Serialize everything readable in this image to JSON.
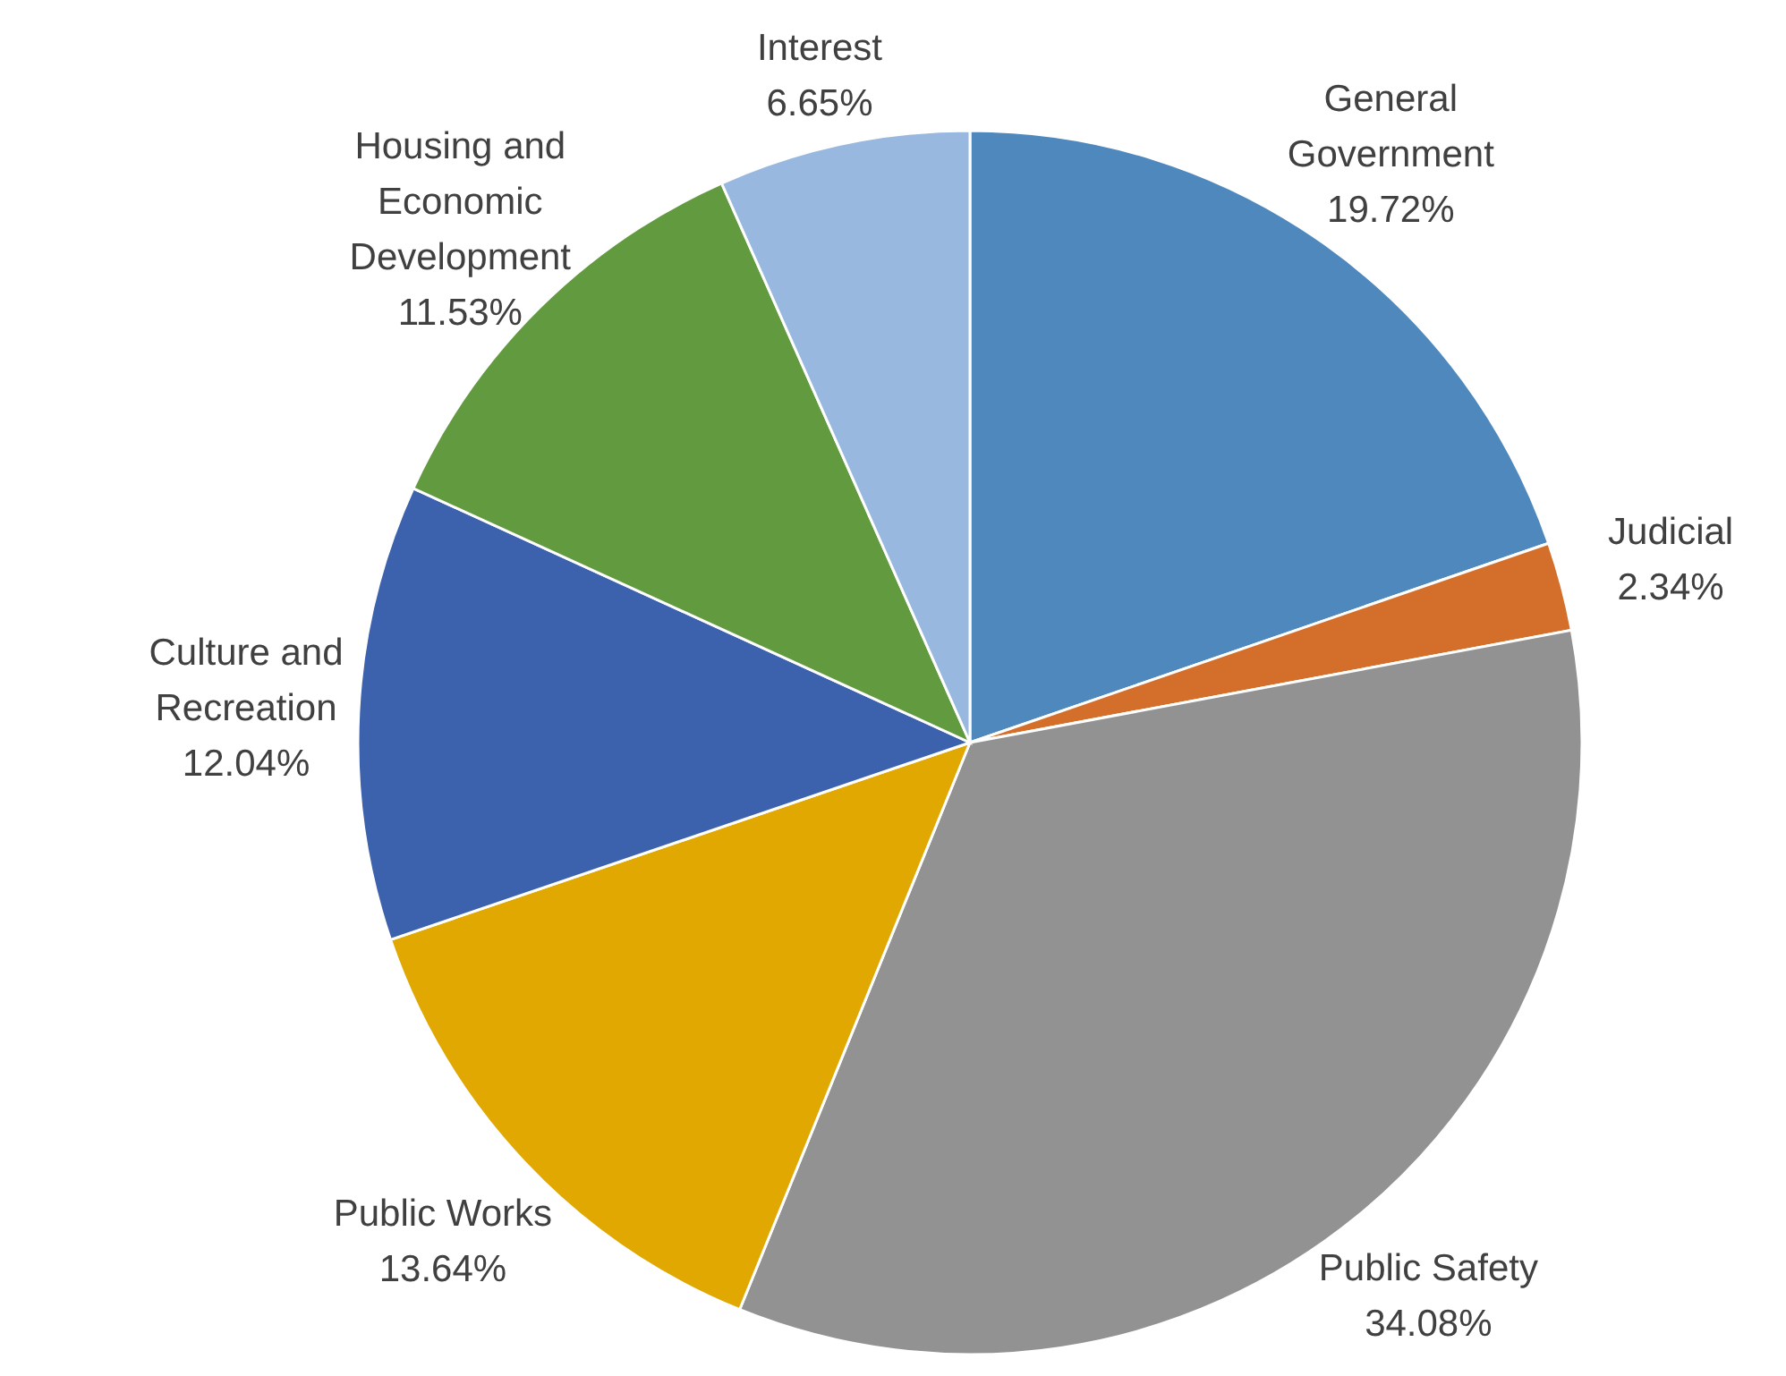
{
  "chart_data": {
    "type": "pie",
    "categories": [
      "General Government",
      "Judicial",
      "Public Safety",
      "Public Works",
      "Culture and Recreation",
      "Housing and Economic Development",
      "Interest"
    ],
    "values": [
      19.72,
      2.34,
      34.08,
      13.64,
      12.04,
      11.53,
      6.65
    ],
    "value_labels": [
      "19.72%",
      "2.34%",
      "34.08%",
      "13.64%",
      "12.04%",
      "11.53%",
      "6.65%"
    ],
    "colors": [
      "#4f88bd",
      "#d36f2a",
      "#929292",
      "#e0a800",
      "#3d62ad",
      "#629a3f",
      "#99b8df"
    ],
    "legend": false
  }
}
